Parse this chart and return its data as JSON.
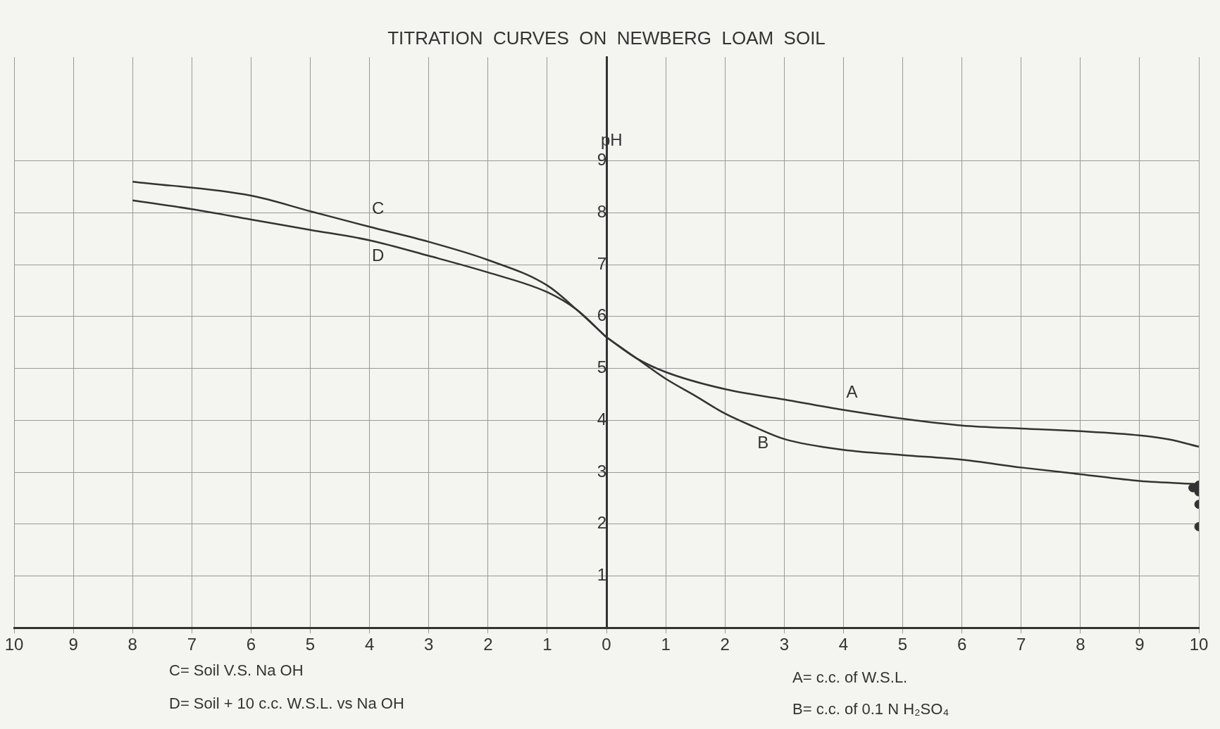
{
  "chart_data": {
    "type": "line",
    "title": "TITRATION  CURVES  ON  NEWBERG  LOAM  SOIL",
    "ylabel": "pH",
    "xlim": [
      -10,
      10
    ],
    "xticks": [
      {
        "value": -10,
        "label": "10"
      },
      {
        "value": -9,
        "label": "9"
      },
      {
        "value": -8,
        "label": "8"
      },
      {
        "value": -7,
        "label": "7"
      },
      {
        "value": -6,
        "label": "6"
      },
      {
        "value": -5,
        "label": "5"
      },
      {
        "value": -4,
        "label": "4"
      },
      {
        "value": -3,
        "label": "3"
      },
      {
        "value": -2,
        "label": "2"
      },
      {
        "value": -1,
        "label": "1"
      },
      0,
      1,
      2,
      3,
      4,
      5,
      6,
      7,
      8,
      9,
      10
    ],
    "ylim": [
      0,
      11
    ],
    "yticks": [
      1,
      2,
      3,
      4,
      5,
      6,
      7,
      8,
      9
    ],
    "grid": true,
    "legend": false,
    "series": [
      {
        "name": "C",
        "color": "#333333",
        "x": [
          -8,
          -6,
          -5,
          -4,
          -3,
          -2,
          -1,
          -0.5,
          0
        ],
        "values": [
          8.6,
          8.33,
          8.03,
          7.73,
          7.44,
          7.09,
          6.6,
          6.13,
          5.6
        ]
      },
      {
        "name": "D",
        "color": "#333333",
        "x": [
          -8,
          -7,
          -6,
          -5,
          -4,
          -3,
          -2,
          -1,
          -0.5,
          0
        ],
        "values": [
          8.24,
          8.07,
          7.87,
          7.67,
          7.47,
          7.17,
          6.85,
          6.47,
          6.13,
          5.6
        ]
      },
      {
        "name": "A",
        "color": "#333333",
        "x": [
          0,
          0.5,
          1,
          2,
          3,
          4,
          5,
          6,
          7,
          8,
          9,
          9.5,
          10
        ],
        "values": [
          5.6,
          5.2,
          4.93,
          4.6,
          4.4,
          4.2,
          4.03,
          3.9,
          3.84,
          3.79,
          3.71,
          3.63,
          3.49
        ]
      },
      {
        "name": "B",
        "color": "#333333",
        "x": [
          0,
          0.5,
          1,
          1.5,
          2,
          2.5,
          3,
          4,
          5,
          6,
          7,
          8,
          9,
          10
        ],
        "values": [
          5.6,
          5.2,
          4.8,
          4.47,
          4.13,
          3.87,
          3.64,
          3.43,
          3.33,
          3.24,
          3.09,
          2.96,
          2.83,
          2.77
        ]
      },
      {
        "type": "scatter",
        "marker": "circle",
        "color": "#333333",
        "x": [
          9.9,
          10,
          10,
          10,
          10
        ],
        "values": [
          2.7,
          2.75,
          2.62,
          2.38,
          1.95
        ]
      }
    ],
    "annotations": [
      "C= Soil  V.S. Na OH",
      "D= Soil + 10 c.c. W.S.L. vs Na OH",
      "A=  c.c. of  W.S.L.",
      "B=  c.c. of 0.1 N H₂SO₄"
    ]
  }
}
